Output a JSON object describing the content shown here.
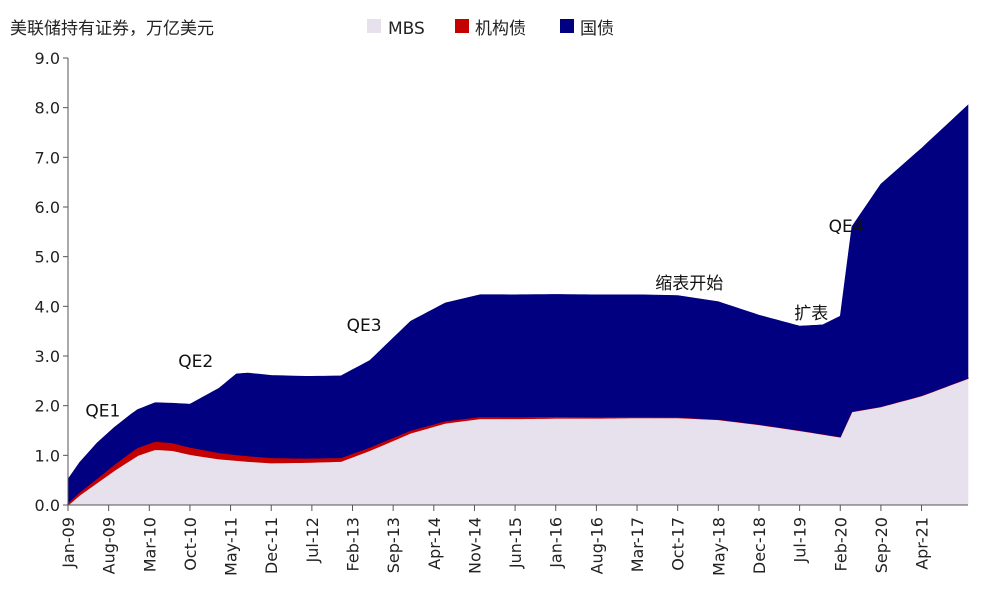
{
  "chart_data": {
    "type": "area",
    "stacked": true,
    "title": "美联储持有证券，万亿美元",
    "xlabel": "",
    "ylabel": "",
    "ylim": [
      0,
      9
    ],
    "y_ticks": [
      "0.0",
      "1.0",
      "2.0",
      "3.0",
      "4.0",
      "5.0",
      "6.0",
      "7.0",
      "8.0",
      "9.0"
    ],
    "x_tick_labels": [
      "Jan-09",
      "Aug-09",
      "Mar-10",
      "Oct-10",
      "May-11",
      "Dec-11",
      "Jul-12",
      "Feb-13",
      "Sep-13",
      "Apr-14",
      "Nov-14",
      "Jun-15",
      "Jan-16",
      "Aug-16",
      "Mar-17",
      "Oct-17",
      "May-18",
      "Dec-18",
      "Jul-19",
      "Feb-20",
      "Sep-20",
      "Apr-21"
    ],
    "x_start": "2009-01",
    "x_end": "2021-12",
    "legend_position": "top",
    "grid": false,
    "series": [
      {
        "name": "MBS",
        "color": "#e6e1ec",
        "points": [
          [
            "2009-01",
            0.0
          ],
          [
            "2009-03",
            0.2
          ],
          [
            "2009-06",
            0.45
          ],
          [
            "2009-09",
            0.7
          ],
          [
            "2010-01",
            1.0
          ],
          [
            "2010-04",
            1.12
          ],
          [
            "2010-07",
            1.1
          ],
          [
            "2010-10",
            1.02
          ],
          [
            "2011-03",
            0.93
          ],
          [
            "2011-08",
            0.88
          ],
          [
            "2011-12",
            0.85
          ],
          [
            "2012-06",
            0.86
          ],
          [
            "2012-12",
            0.88
          ],
          [
            "2013-05",
            1.1
          ],
          [
            "2013-12",
            1.45
          ],
          [
            "2014-06",
            1.65
          ],
          [
            "2014-12",
            1.74
          ],
          [
            "2015-06",
            1.74
          ],
          [
            "2016-01",
            1.75
          ],
          [
            "2016-08",
            1.75
          ],
          [
            "2017-03",
            1.76
          ],
          [
            "2017-10",
            1.76
          ],
          [
            "2018-05",
            1.72
          ],
          [
            "2018-12",
            1.62
          ],
          [
            "2019-07",
            1.5
          ],
          [
            "2020-02",
            1.37
          ],
          [
            "2020-04",
            1.88
          ],
          [
            "2020-09",
            1.98
          ],
          [
            "2021-04",
            2.2
          ],
          [
            "2021-12",
            2.55
          ]
        ]
      },
      {
        "name": "机构债",
        "color": "#c40000",
        "points": [
          [
            "2009-01",
            0.04
          ],
          [
            "2009-06",
            0.08
          ],
          [
            "2009-12",
            0.15
          ],
          [
            "2010-04",
            0.16
          ],
          [
            "2010-10",
            0.14
          ],
          [
            "2011-06",
            0.11
          ],
          [
            "2011-12",
            0.1
          ],
          [
            "2012-06",
            0.08
          ],
          [
            "2012-12",
            0.07
          ],
          [
            "2013-06",
            0.06
          ],
          [
            "2013-12",
            0.05
          ],
          [
            "2014-06",
            0.04
          ],
          [
            "2015-01",
            0.035
          ],
          [
            "2016-01",
            0.03
          ],
          [
            "2017-01",
            0.015
          ],
          [
            "2018-01",
            0.005
          ],
          [
            "2018-06",
            0.003
          ],
          [
            "2019-01",
            0.003
          ],
          [
            "2020-02",
            0.002
          ],
          [
            "2021-12",
            0.002
          ]
        ]
      },
      {
        "name": "国债",
        "color": "#000080",
        "points": [
          [
            "2009-01",
            0.48
          ],
          [
            "2009-03",
            0.6
          ],
          [
            "2009-06",
            0.72
          ],
          [
            "2009-09",
            0.75
          ],
          [
            "2010-01",
            0.77
          ],
          [
            "2010-04",
            0.78
          ],
          [
            "2010-07",
            0.8
          ],
          [
            "2010-10",
            0.87
          ],
          [
            "2011-03",
            1.3
          ],
          [
            "2011-06",
            1.63
          ],
          [
            "2011-08",
            1.67
          ],
          [
            "2011-12",
            1.66
          ],
          [
            "2012-06",
            1.65
          ],
          [
            "2012-12",
            1.65
          ],
          [
            "2013-05",
            1.75
          ],
          [
            "2013-12",
            2.2
          ],
          [
            "2014-06",
            2.38
          ],
          [
            "2014-12",
            2.46
          ],
          [
            "2015-06",
            2.46
          ],
          [
            "2016-01",
            2.46
          ],
          [
            "2016-08",
            2.46
          ],
          [
            "2017-03",
            2.46
          ],
          [
            "2017-10",
            2.45
          ],
          [
            "2018-05",
            2.37
          ],
          [
            "2018-12",
            2.2
          ],
          [
            "2019-07",
            2.1
          ],
          [
            "2019-11",
            2.2
          ],
          [
            "2020-02",
            2.43
          ],
          [
            "2020-04",
            3.72
          ],
          [
            "2020-09",
            4.48
          ],
          [
            "2021-04",
            4.98
          ],
          [
            "2021-12",
            5.5
          ]
        ]
      }
    ],
    "annotations": [
      {
        "text": "QE1",
        "x": "2009-07",
        "y": 1.78
      },
      {
        "text": "QE2",
        "x": "2010-11",
        "y": 2.78
      },
      {
        "text": "QE3",
        "x": "2013-04",
        "y": 3.5
      },
      {
        "text": "缩表开始",
        "x": "2017-12",
        "y": 4.35
      },
      {
        "text": "扩表",
        "x": "2019-09",
        "y": 3.75
      },
      {
        "text": "QE4",
        "x": "2020-03",
        "y": 5.5
      }
    ]
  }
}
